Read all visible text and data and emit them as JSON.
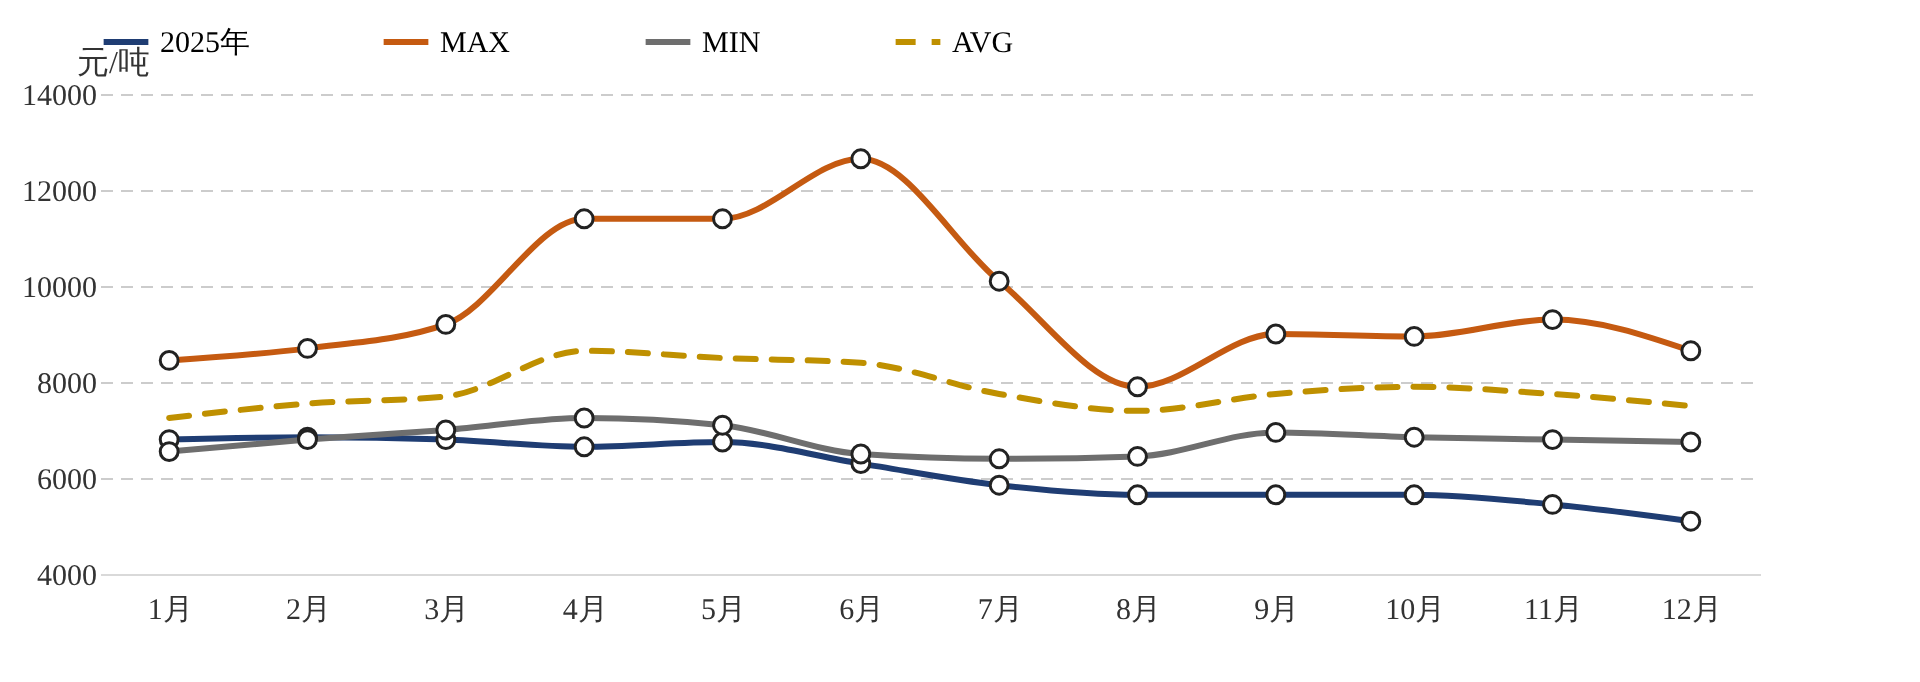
{
  "chart_data": {
    "type": "line",
    "ylabel": "元/吨",
    "categories": [
      "1月",
      "2月",
      "3月",
      "4月",
      "5月",
      "6月",
      "7月",
      "8月",
      "9月",
      "10月",
      "11月",
      "12月"
    ],
    "ylim": [
      4000,
      14000
    ],
    "yticks": [
      4000,
      6000,
      8000,
      10000,
      12000,
      14000
    ],
    "grid": "y",
    "legend": "top",
    "series": [
      {
        "name": "2025年",
        "color": "#1f3d73",
        "marker": "circle",
        "line_style": "solid",
        "values": [
          6800,
          6850,
          6800,
          6650,
          6750,
          6300,
          5850,
          5650,
          5650,
          5650,
          5450,
          5100
        ]
      },
      {
        "name": "MAX",
        "color": "#c55a11",
        "marker": "circle",
        "line_style": "solid",
        "values": [
          8450,
          8700,
          9200,
          11400,
          11400,
          12650,
          10100,
          7900,
          9000,
          8950,
          9300,
          8650
        ]
      },
      {
        "name": "MIN",
        "color": "#6e6e6e",
        "marker": "circle",
        "line_style": "solid",
        "values": [
          6550,
          6800,
          7000,
          7250,
          7100,
          6500,
          6400,
          6450,
          6950,
          6850,
          6800,
          6750
        ]
      },
      {
        "name": "AVG",
        "color": "#bf9000",
        "marker": "none",
        "line_style": "dashed",
        "values": [
          7250,
          7550,
          7700,
          8650,
          8500,
          8400,
          7750,
          7400,
          7750,
          7900,
          7750,
          7500
        ]
      }
    ]
  }
}
